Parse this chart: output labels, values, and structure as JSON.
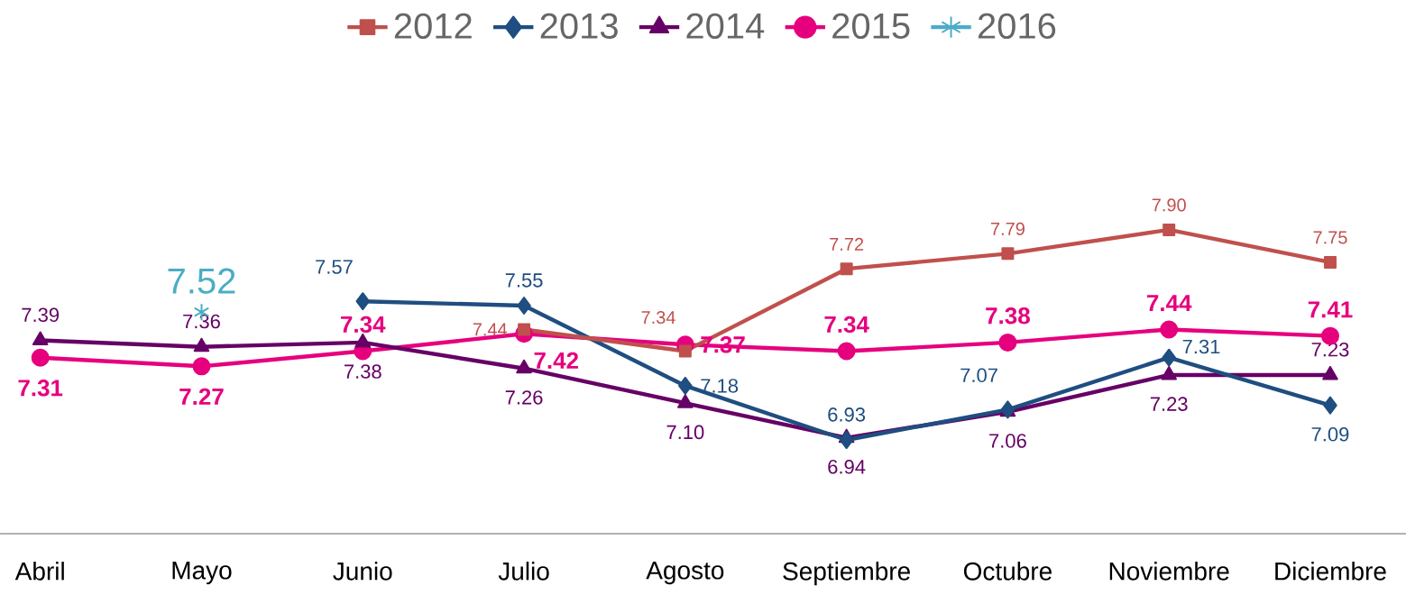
{
  "chart_data": {
    "type": "line",
    "categories": [
      "Abril",
      "Mayo",
      "Junio",
      "Julio",
      "Agosto",
      "Septiembre",
      "Octubre",
      "Noviembre",
      "Diciembre"
    ],
    "series": [
      {
        "name": "2012",
        "color": "#c0504d",
        "marker": "square",
        "values": [
          null,
          null,
          null,
          7.44,
          7.34,
          7.72,
          7.79,
          7.9,
          7.75
        ],
        "value_labels": [
          null,
          null,
          null,
          "7.44",
          "7.34",
          "7.72",
          "7.79",
          "7.90",
          "7.75"
        ]
      },
      {
        "name": "2013",
        "color": "#1f4e80",
        "marker": "diamond",
        "values": [
          null,
          null,
          7.57,
          7.55,
          7.18,
          6.93,
          7.07,
          7.31,
          7.09
        ],
        "value_labels": [
          null,
          null,
          "7.57",
          "7.55",
          "7.18",
          "6.93",
          "7.07",
          "7.31",
          "7.09"
        ]
      },
      {
        "name": "2014",
        "color": "#660066",
        "marker": "triangle",
        "values": [
          7.39,
          7.36,
          7.38,
          7.26,
          7.1,
          6.94,
          7.06,
          7.23,
          7.23
        ],
        "value_labels": [
          "7.39",
          "7.36",
          "7.38",
          "7.26",
          "7.10",
          "6.94",
          "7.06",
          "7.23",
          "7.23"
        ]
      },
      {
        "name": "2015",
        "color": "#e6007e",
        "marker": "circle",
        "values": [
          7.31,
          7.27,
          7.34,
          7.42,
          7.37,
          7.34,
          7.38,
          7.44,
          7.41
        ],
        "value_labels": [
          "7.31",
          "7.27",
          "7.34",
          "7.42",
          "7.37",
          "7.34",
          "7.38",
          "7.44",
          "7.41"
        ]
      },
      {
        "name": "2016",
        "color": "#4bacc6",
        "marker": "cross",
        "values": [
          null,
          7.52,
          null,
          null,
          null,
          null,
          null,
          null,
          null
        ],
        "value_labels": [
          null,
          "7.52",
          null,
          null,
          null,
          null,
          null,
          null,
          null
        ]
      }
    ],
    "legend": "top",
    "line_style": "solid"
  }
}
